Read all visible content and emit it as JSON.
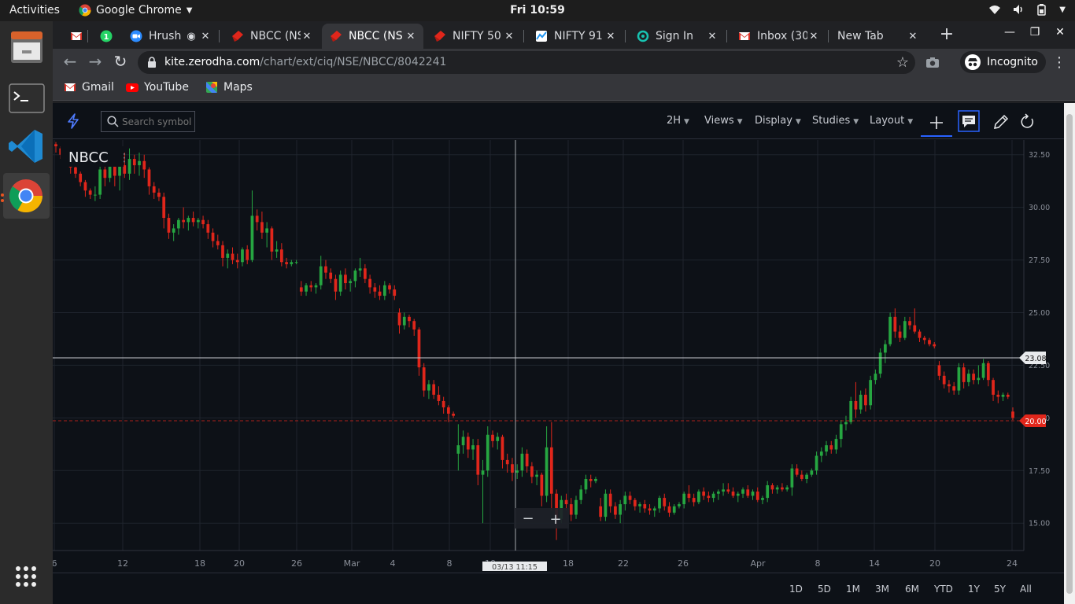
{
  "topbar": {
    "activities": "Activities",
    "app_name": "Google Chrome",
    "clock": "Fri 10:59"
  },
  "browser": {
    "tabs": [
      {
        "label": "",
        "favicon": "gmail-icon"
      },
      {
        "label": "",
        "favicon": "whatsapp-icon"
      },
      {
        "label": "Hrush",
        "favicon": "zoom-icon"
      },
      {
        "label": "NBCC (NS",
        "favicon": "kite-icon"
      },
      {
        "label": "NBCC (NS",
        "favicon": "kite-icon",
        "active": true
      },
      {
        "label": "NIFTY 50",
        "favicon": "kite-icon"
      },
      {
        "label": "NIFTY 91",
        "favicon": "sensibull-icon"
      },
      {
        "label": "Sign In",
        "favicon": "spin-icon"
      },
      {
        "label": "Inbox (30",
        "favicon": "gmail-icon"
      },
      {
        "label": "New Tab",
        "favicon": ""
      }
    ],
    "url_host": "kite.zerodha.com",
    "url_path": "/chart/ext/ciq/NSE/NBCC/8042241",
    "incognito_label": "Incognito",
    "bookmarks": [
      {
        "label": "Gmail",
        "icon": "gmail-icon"
      },
      {
        "label": "YouTube",
        "icon": "youtube-icon"
      },
      {
        "label": "Maps",
        "icon": "maps-icon"
      }
    ]
  },
  "kite": {
    "search_placeholder": "Search symbol",
    "interval": "2H",
    "menus": [
      "Views",
      "Display",
      "Studies",
      "Layout"
    ],
    "ranges": [
      "1D",
      "5D",
      "1M",
      "3M",
      "6M",
      "YTD",
      "1Y",
      "5Y",
      "All"
    ],
    "symbol": "NBCC",
    "crosshair_price": "23.08",
    "crosshair_time": "03/13 11:15",
    "current_price": "20.00",
    "zoom_out": "−",
    "zoom_in": "+"
  },
  "chart_data": {
    "type": "candlestick",
    "symbol": "NBCC",
    "y_ticks": [
      "32.50",
      "30.00",
      "27.50",
      "25.00",
      "22.50",
      "20.00",
      "17.50",
      "15.00"
    ],
    "y_tick_values": [
      32.5,
      30.0,
      27.5,
      25.0,
      22.5,
      20.0,
      17.5,
      15.0
    ],
    "x_ticks": [
      "6",
      "12",
      "18",
      "20",
      "26",
      "Mar",
      "4",
      "8",
      "10",
      "16",
      "18",
      "22",
      "26",
      "Apr",
      "8",
      "14",
      "20",
      "24"
    ],
    "ylim": [
      13.7,
      33.2
    ],
    "grid": true,
    "last_price": 20.0,
    "colors": {
      "up": "#26a641",
      "down": "#e0261b",
      "background": "#0d1117",
      "grid": "#1f242d",
      "axis_text": "#8a8f99"
    },
    "candles": [
      [
        33.0,
        33.1,
        32.6,
        32.9
      ],
      [
        32.8,
        32.9,
        32.3,
        32.5
      ],
      [
        32.5,
        32.6,
        32.0,
        32.2
      ],
      [
        32.2,
        32.3,
        31.6,
        31.9
      ],
      [
        31.9,
        32.0,
        31.4,
        31.6
      ],
      [
        31.6,
        31.7,
        31.0,
        31.2
      ],
      [
        31.2,
        31.3,
        30.5,
        30.8
      ],
      [
        30.8,
        30.9,
        30.4,
        30.6
      ],
      [
        30.6,
        31.0,
        30.3,
        30.6
      ],
      [
        30.6,
        32.0,
        30.4,
        31.8
      ],
      [
        31.8,
        32.2,
        31.0,
        31.4
      ],
      [
        31.4,
        32.9,
        31.2,
        32.5
      ],
      [
        32.5,
        32.7,
        31.0,
        31.5
      ],
      [
        31.5,
        32.3,
        30.8,
        32.0
      ],
      [
        32.0,
        32.6,
        31.4,
        31.6
      ],
      [
        31.6,
        32.8,
        31.3,
        32.3
      ],
      [
        32.3,
        32.5,
        31.6,
        32.0
      ],
      [
        32.0,
        32.6,
        31.5,
        32.2
      ],
      [
        32.2,
        32.5,
        31.4,
        31.8
      ],
      [
        31.8,
        31.9,
        30.6,
        31.0
      ],
      [
        31.0,
        31.2,
        30.4,
        30.7
      ],
      [
        30.7,
        30.9,
        30.3,
        30.5
      ],
      [
        30.5,
        30.7,
        29.0,
        29.5
      ],
      [
        29.5,
        29.7,
        28.5,
        28.8
      ],
      [
        28.8,
        29.2,
        28.4,
        29.0
      ],
      [
        29.0,
        29.5,
        28.7,
        29.4
      ],
      [
        29.4,
        30.0,
        29.0,
        29.3
      ],
      [
        29.3,
        29.6,
        28.9,
        29.5
      ],
      [
        29.5,
        29.8,
        29.1,
        29.3
      ],
      [
        29.3,
        29.5,
        29.0,
        29.4
      ],
      [
        29.4,
        29.6,
        29.0,
        29.2
      ],
      [
        29.2,
        29.4,
        28.5,
        28.8
      ],
      [
        28.8,
        29.0,
        28.1,
        28.4
      ],
      [
        28.4,
        28.7,
        28.0,
        28.2
      ],
      [
        28.2,
        28.4,
        27.2,
        27.6
      ],
      [
        27.6,
        28.0,
        27.1,
        27.8
      ],
      [
        27.8,
        28.1,
        27.3,
        27.5
      ],
      [
        27.5,
        27.8,
        27.1,
        27.4
      ],
      [
        27.4,
        28.1,
        27.2,
        28.0
      ],
      [
        28.0,
        28.2,
        27.3,
        27.5
      ],
      [
        27.5,
        30.8,
        27.4,
        29.6
      ],
      [
        29.6,
        29.9,
        28.9,
        29.3
      ],
      [
        29.3,
        29.8,
        28.5,
        28.8
      ],
      [
        28.8,
        29.3,
        28.1,
        29.0
      ],
      [
        29.0,
        29.1,
        27.5,
        27.9
      ],
      [
        27.9,
        28.4,
        27.6,
        28.0
      ],
      [
        28.0,
        28.3,
        27.2,
        27.4
      ],
      [
        27.4,
        27.6,
        27.1,
        27.3
      ],
      [
        27.3,
        27.5,
        27.2,
        27.4
      ],
      [
        27.4,
        27.5,
        27.3,
        27.4
      ],
      [
        26.2,
        26.5,
        25.8,
        26.0
      ],
      [
        26.0,
        26.4,
        25.8,
        26.3
      ],
      [
        26.3,
        26.5,
        26.0,
        26.2
      ],
      [
        26.2,
        26.4,
        25.9,
        26.3
      ],
      [
        26.3,
        27.7,
        26.1,
        27.2
      ],
      [
        27.2,
        27.5,
        26.6,
        26.9
      ],
      [
        26.9,
        27.1,
        26.4,
        26.6
      ],
      [
        26.6,
        26.8,
        25.6,
        26.0
      ],
      [
        26.0,
        27.0,
        25.8,
        26.8
      ],
      [
        26.8,
        27.1,
        26.1,
        26.4
      ],
      [
        26.4,
        26.6,
        26.0,
        26.5
      ],
      [
        26.5,
        27.1,
        26.2,
        27.0
      ],
      [
        27.0,
        27.6,
        26.7,
        27.1
      ],
      [
        27.1,
        27.3,
        26.4,
        26.6
      ],
      [
        26.6,
        26.8,
        25.9,
        26.2
      ],
      [
        26.2,
        26.4,
        25.7,
        26.0
      ],
      [
        26.0,
        26.3,
        25.6,
        25.8
      ],
      [
        25.8,
        26.5,
        25.6,
        26.3
      ],
      [
        26.3,
        26.4,
        25.9,
        26.1
      ],
      [
        26.1,
        26.3,
        25.6,
        25.8
      ],
      [
        25.0,
        25.2,
        24.0,
        24.4
      ],
      [
        24.4,
        25.0,
        24.2,
        24.8
      ],
      [
        24.8,
        24.9,
        24.3,
        24.6
      ],
      [
        24.6,
        24.7,
        23.9,
        24.2
      ],
      [
        24.2,
        24.3,
        22.0,
        22.4
      ],
      [
        22.4,
        22.6,
        21.0,
        21.3
      ],
      [
        21.3,
        21.8,
        20.9,
        21.6
      ],
      [
        21.6,
        21.8,
        20.9,
        21.1
      ],
      [
        21.1,
        21.5,
        20.6,
        20.8
      ],
      [
        20.8,
        21.0,
        20.2,
        20.5
      ],
      [
        20.5,
        20.6,
        19.8,
        20.2
      ],
      [
        20.2,
        20.3,
        20.0,
        20.1
      ],
      [
        18.3,
        19.7,
        17.5,
        18.7
      ],
      [
        18.7,
        19.4,
        18.3,
        19.1
      ],
      [
        19.1,
        19.3,
        18.1,
        18.5
      ],
      [
        18.5,
        19.0,
        18.0,
        18.7
      ],
      [
        18.7,
        19.0,
        16.8,
        17.3
      ],
      [
        17.3,
        18.0,
        15.0,
        17.5
      ],
      [
        17.5,
        19.6,
        17.2,
        19.2
      ],
      [
        19.2,
        19.4,
        18.6,
        18.9
      ],
      [
        18.9,
        19.3,
        18.5,
        19.1
      ],
      [
        19.1,
        19.2,
        17.6,
        18.0
      ],
      [
        18.0,
        18.3,
        17.4,
        17.8
      ],
      [
        17.8,
        18.1,
        17.0,
        17.4
      ],
      [
        17.4,
        17.8,
        17.1,
        17.5
      ],
      [
        17.5,
        18.6,
        17.2,
        18.3
      ],
      [
        18.3,
        18.5,
        17.4,
        17.7
      ],
      [
        17.7,
        17.9,
        16.9,
        17.2
      ],
      [
        17.2,
        17.5,
        16.8,
        17.3
      ],
      [
        17.3,
        17.4,
        15.8,
        16.3
      ],
      [
        16.3,
        19.6,
        16.0,
        18.6
      ],
      [
        18.6,
        19.8,
        15.6,
        16.4
      ],
      [
        16.4,
        16.6,
        14.2,
        15.2
      ],
      [
        15.2,
        16.3,
        15.0,
        16.1
      ],
      [
        16.1,
        16.4,
        15.6,
        15.9
      ],
      [
        15.9,
        16.2,
        15.1,
        15.4
      ],
      [
        15.4,
        16.3,
        15.2,
        16.1
      ],
      [
        16.1,
        16.8,
        15.9,
        16.6
      ],
      [
        16.6,
        17.3,
        16.4,
        17.1
      ],
      [
        17.1,
        17.3,
        16.7,
        17.0
      ],
      [
        17.0,
        17.2,
        16.9,
        17.1
      ],
      [
        15.8,
        16.2,
        15.1,
        15.3
      ],
      [
        15.3,
        16.6,
        15.1,
        16.4
      ],
      [
        16.4,
        16.6,
        15.5,
        15.8
      ],
      [
        15.8,
        16.0,
        15.2,
        15.4
      ],
      [
        15.4,
        16.1,
        15.0,
        15.9
      ],
      [
        15.9,
        16.5,
        15.6,
        16.3
      ],
      [
        16.3,
        16.5,
        15.9,
        16.1
      ],
      [
        16.1,
        16.2,
        15.6,
        15.8
      ],
      [
        15.8,
        16.0,
        15.5,
        15.9
      ],
      [
        15.9,
        16.1,
        15.5,
        15.7
      ],
      [
        15.7,
        15.9,
        15.4,
        15.6
      ],
      [
        15.6,
        15.8,
        15.3,
        15.7
      ],
      [
        15.7,
        16.3,
        15.5,
        16.2
      ],
      [
        16.2,
        16.4,
        15.6,
        15.8
      ],
      [
        15.8,
        16.0,
        15.3,
        15.5
      ],
      [
        15.5,
        15.9,
        15.4,
        15.8
      ],
      [
        15.8,
        16.0,
        15.7,
        15.9
      ],
      [
        15.9,
        16.5,
        15.7,
        16.4
      ],
      [
        16.4,
        16.8,
        16.0,
        16.2
      ],
      [
        16.2,
        16.4,
        15.8,
        16.0
      ],
      [
        16.0,
        16.6,
        15.9,
        16.5
      ],
      [
        16.5,
        16.7,
        16.1,
        16.3
      ],
      [
        16.3,
        16.5,
        16.0,
        16.2
      ],
      [
        16.2,
        16.5,
        16.0,
        16.4
      ],
      [
        16.4,
        16.6,
        16.1,
        16.5
      ],
      [
        16.5,
        16.9,
        16.3,
        16.6
      ],
      [
        16.6,
        16.9,
        16.4,
        16.5
      ],
      [
        16.5,
        16.7,
        16.2,
        16.3
      ],
      [
        16.3,
        16.5,
        16.0,
        16.4
      ],
      [
        16.4,
        16.7,
        16.2,
        16.6
      ],
      [
        16.6,
        16.8,
        16.2,
        16.3
      ],
      [
        16.3,
        16.6,
        16.1,
        16.5
      ],
      [
        16.5,
        16.7,
        16.0,
        16.1
      ],
      [
        16.1,
        16.3,
        15.9,
        16.2
      ],
      [
        16.2,
        17.0,
        16.0,
        16.8
      ],
      [
        16.8,
        16.9,
        16.4,
        16.6
      ],
      [
        16.6,
        16.8,
        16.4,
        16.7
      ],
      [
        16.7,
        16.9,
        16.5,
        16.6
      ],
      [
        16.6,
        16.8,
        16.5,
        16.7
      ],
      [
        16.7,
        17.8,
        16.3,
        17.6
      ],
      [
        17.6,
        17.8,
        17.2,
        17.3
      ],
      [
        17.3,
        17.5,
        17.0,
        17.1
      ],
      [
        17.1,
        17.4,
        16.9,
        17.3
      ],
      [
        17.3,
        17.6,
        17.2,
        17.5
      ],
      [
        17.5,
        18.4,
        17.3,
        18.2
      ],
      [
        18.2,
        18.6,
        17.9,
        18.4
      ],
      [
        18.4,
        18.9,
        18.2,
        18.7
      ],
      [
        18.7,
        18.9,
        18.3,
        18.5
      ],
      [
        18.5,
        19.2,
        18.3,
        19.0
      ],
      [
        19.0,
        19.9,
        18.6,
        19.7
      ],
      [
        19.7,
        20.1,
        19.4,
        19.8
      ],
      [
        19.8,
        21.0,
        19.7,
        20.8
      ],
      [
        20.8,
        21.7,
        20.0,
        20.4
      ],
      [
        20.4,
        21.3,
        20.2,
        21.1
      ],
      [
        21.1,
        21.4,
        20.3,
        20.6
      ],
      [
        20.6,
        22.0,
        20.4,
        21.8
      ],
      [
        21.8,
        22.3,
        21.6,
        22.1
      ],
      [
        22.1,
        23.3,
        21.9,
        23.1
      ],
      [
        23.1,
        23.7,
        22.6,
        23.5
      ],
      [
        23.5,
        25.0,
        23.4,
        24.8
      ],
      [
        24.8,
        25.2,
        23.8,
        24.1
      ],
      [
        24.1,
        24.4,
        23.6,
        23.8
      ],
      [
        23.8,
        24.8,
        23.7,
        24.6
      ],
      [
        24.6,
        24.8,
        24.2,
        24.4
      ],
      [
        24.4,
        25.2,
        24.0,
        24.1
      ],
      [
        24.1,
        24.2,
        23.6,
        23.8
      ],
      [
        23.8,
        23.9,
        23.5,
        23.7
      ],
      [
        23.7,
        23.8,
        23.4,
        23.5
      ],
      [
        23.5,
        23.6,
        23.3,
        23.4
      ],
      [
        22.5,
        22.7,
        21.8,
        22.0
      ],
      [
        22.0,
        22.2,
        21.4,
        21.6
      ],
      [
        21.6,
        21.8,
        21.2,
        21.5
      ],
      [
        21.5,
        21.7,
        21.1,
        21.3
      ],
      [
        21.3,
        22.6,
        21.1,
        22.4
      ],
      [
        22.4,
        22.6,
        21.4,
        21.7
      ],
      [
        21.7,
        22.3,
        21.5,
        22.1
      ],
      [
        22.1,
        22.3,
        21.6,
        21.8
      ],
      [
        21.8,
        22.5,
        21.6,
        21.9
      ],
      [
        21.9,
        22.8,
        21.8,
        22.6
      ],
      [
        22.6,
        22.7,
        21.5,
        21.8
      ],
      [
        21.8,
        21.9,
        20.8,
        21.1
      ],
      [
        21.1,
        21.3,
        20.7,
        21.0
      ],
      [
        21.0,
        21.2,
        20.8,
        21.1
      ],
      [
        21.1,
        21.2,
        20.9,
        21.0
      ],
      [
        20.3,
        20.5,
        19.9,
        20.0
      ]
    ]
  }
}
